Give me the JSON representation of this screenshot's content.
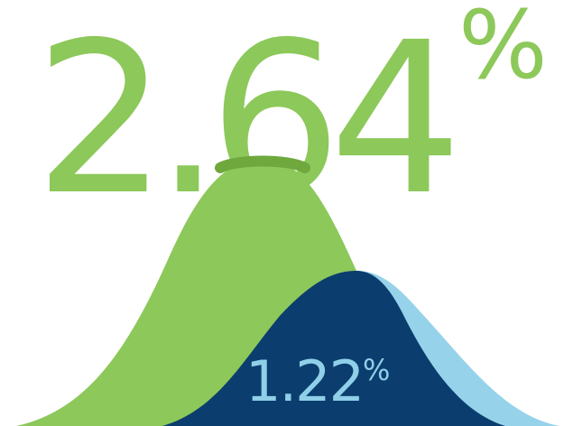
{
  "main_figure": {
    "value": "2.64",
    "unit": "%",
    "color": "#8dc85a"
  },
  "secondary_figure": {
    "value": "1.22",
    "unit": "%",
    "color": "#8fcfe8"
  },
  "colors": {
    "green_curve": "#8dc85a",
    "green_overlap": "#6fa83d",
    "navy_curve": "#0b3d6e",
    "light_blue_curve": "#96d3ea"
  }
}
